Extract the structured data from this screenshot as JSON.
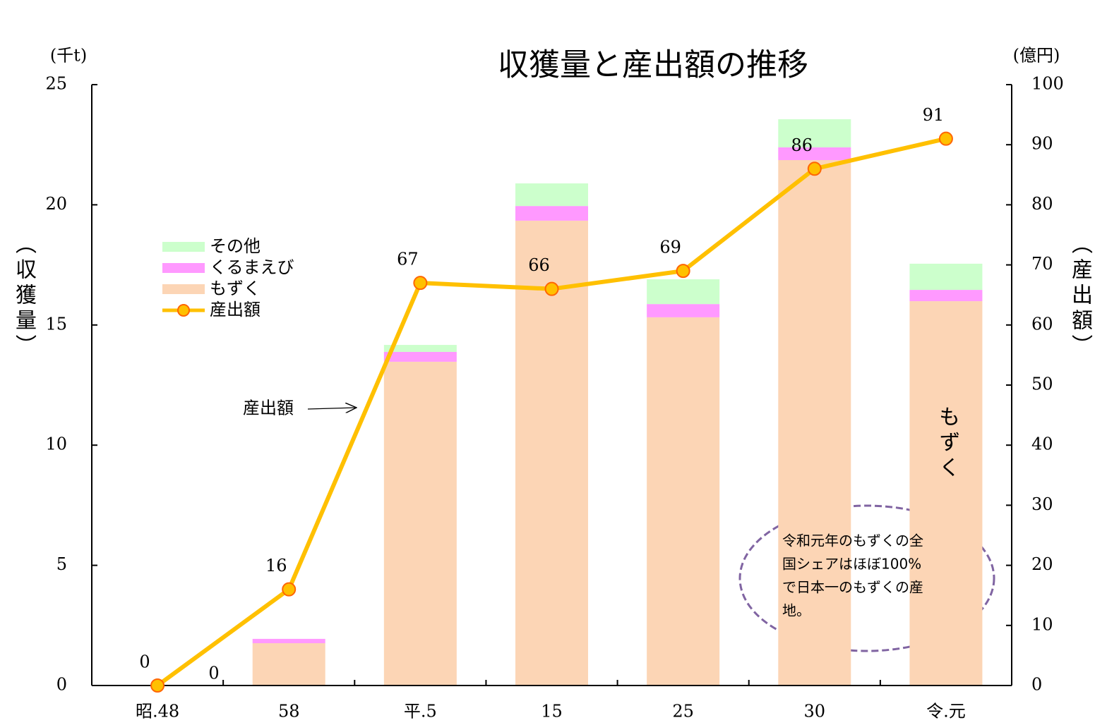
{
  "chart_data": {
    "type": "bar",
    "title": "収獲量と産出額の推移",
    "y_unit": "(千t)",
    "y2_unit": "(億円)",
    "y_label": "（収獲量）",
    "y2_label": "（産出額）",
    "categories": [
      "昭.48",
      "58",
      "平.5",
      "15",
      "25",
      "30",
      "令.元"
    ],
    "stacked": true,
    "series": [
      {
        "name": "もずく",
        "type": "bar",
        "color": "#fcd5b5",
        "values": [
          0,
          1.76,
          13.47,
          19.34,
          15.32,
          21.86,
          15.99
        ]
      },
      {
        "name": "くるまえび",
        "type": "bar",
        "color": "#ff99ff",
        "values": [
          0,
          0.18,
          0.41,
          0.61,
          0.55,
          0.53,
          0.47
        ]
      },
      {
        "name": "その他",
        "type": "bar",
        "color": "#ccffcc",
        "values": [
          0,
          0,
          0.29,
          0.94,
          1.03,
          1.17,
          1.09
        ]
      },
      {
        "name": "産出額",
        "type": "line",
        "axis": "y2",
        "color": "#ffc000",
        "values": [
          0,
          16,
          67,
          66,
          69,
          86,
          91
        ]
      }
    ],
    "ylim": [
      0,
      25
    ],
    "yticks": [
      0,
      5,
      10,
      15,
      20,
      25
    ],
    "y2lim": [
      0,
      100
    ],
    "y2ticks": [
      0,
      10,
      20,
      30,
      40,
      50,
      60,
      70,
      80,
      90,
      100
    ],
    "legend": "upper-left",
    "annotations": [
      "0",
      "産出額",
      "もずく"
    ],
    "note": [
      "令和元年のもずくの全",
      "国シェアはほぼ100%",
      "で日本一のもずくの産",
      "地。"
    ]
  }
}
